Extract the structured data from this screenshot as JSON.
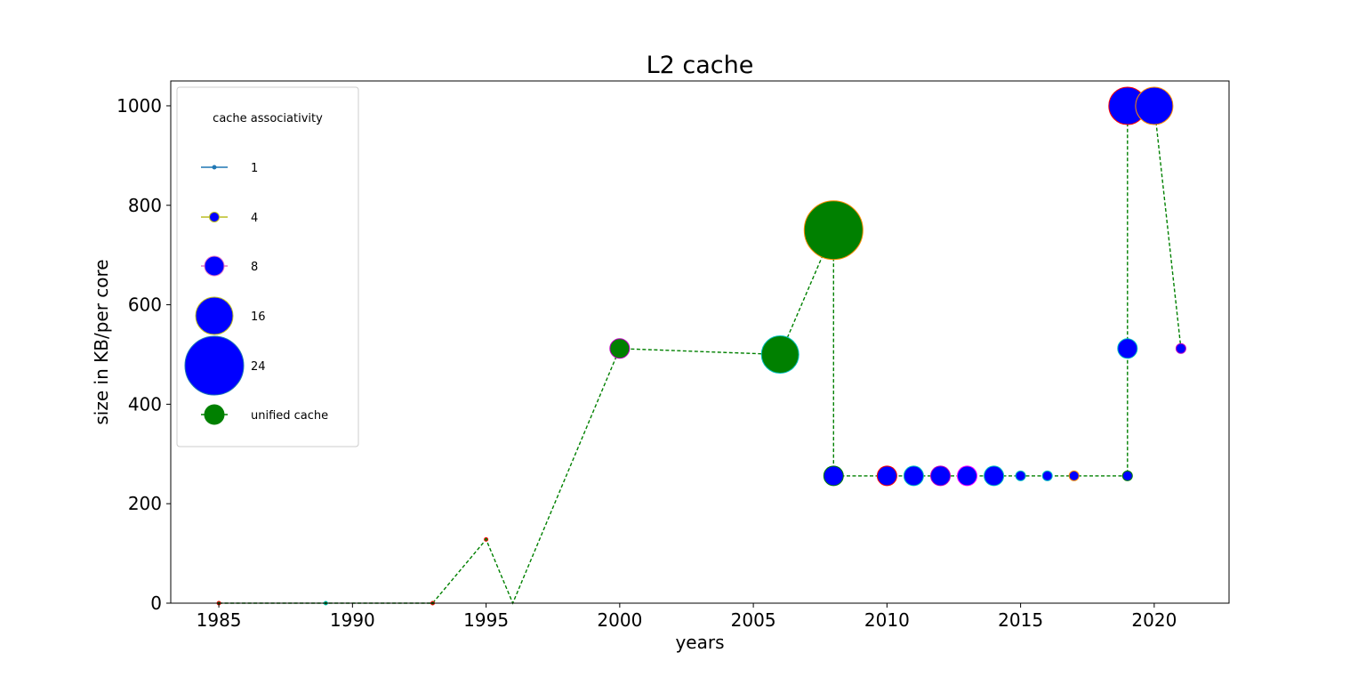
{
  "chart_data": {
    "type": "scatter",
    "title": "L2 cache",
    "xlabel": "years",
    "ylabel": "size in KB/per core",
    "xlim": [
      1983.2,
      2022.8
    ],
    "ylim": [
      0,
      1050
    ],
    "xticks": [
      "1985",
      "1990",
      "1995",
      "2000",
      "2005",
      "2010",
      "2015",
      "2020"
    ],
    "yticks": [
      "0",
      "200",
      "400",
      "600",
      "800",
      "1000"
    ],
    "line_color": "#008000",
    "line_style": "dashed",
    "line_path": [
      [
        1985,
        0
      ],
      [
        1989,
        0
      ],
      [
        1993,
        0
      ],
      [
        1995,
        128
      ],
      [
        1996,
        0
      ],
      [
        2000,
        512
      ],
      [
        2006,
        500
      ],
      [
        2008,
        750
      ],
      [
        2008,
        256
      ],
      [
        2019,
        256
      ],
      [
        2019,
        512
      ],
      [
        2019,
        1000
      ],
      [
        2020,
        1000
      ],
      [
        2021,
        512
      ]
    ],
    "points": [
      {
        "x": 1985,
        "y": 0,
        "assoc": 1,
        "fill": "#008000",
        "edge": "#ff0000"
      },
      {
        "x": 1989,
        "y": 0,
        "assoc": 1,
        "fill": "#008000",
        "edge": "#00bfbf"
      },
      {
        "x": 1993,
        "y": 0,
        "assoc": 1,
        "fill": "#008000",
        "edge": "#ff0000"
      },
      {
        "x": 1995,
        "y": 128,
        "assoc": 1,
        "fill": "#008000",
        "edge": "#ff0000"
      },
      {
        "x": 2000,
        "y": 512,
        "assoc": 8,
        "fill": "#008000",
        "edge": "#bf00bf"
      },
      {
        "x": 2006,
        "y": 500,
        "assoc": 16,
        "fill": "#008000",
        "edge": "#00bfbf"
      },
      {
        "x": 2008,
        "y": 750,
        "assoc": 24,
        "fill": "#008000",
        "edge": "#ff8c00"
      },
      {
        "x": 2008,
        "y": 256,
        "assoc": 8,
        "fill": "#0000ff",
        "edge": "#008000"
      },
      {
        "x": 2010,
        "y": 256,
        "assoc": 8,
        "fill": "#0000ff",
        "edge": "#ff0000"
      },
      {
        "x": 2011,
        "y": 256,
        "assoc": 8,
        "fill": "#0000ff",
        "edge": "#00bfbf"
      },
      {
        "x": 2012,
        "y": 256,
        "assoc": 8,
        "fill": "#0000ff",
        "edge": "#bf00bf"
      },
      {
        "x": 2013,
        "y": 256,
        "assoc": 8,
        "fill": "#0000ff",
        "edge": "#ff00ff"
      },
      {
        "x": 2014,
        "y": 256,
        "assoc": 8,
        "fill": "#0000ff",
        "edge": "#00bfbf"
      },
      {
        "x": 2015,
        "y": 256,
        "assoc": 4,
        "fill": "#0000ff",
        "edge": "#00bfbf"
      },
      {
        "x": 2016,
        "y": 256,
        "assoc": 4,
        "fill": "#0000ff",
        "edge": "#00bfbf"
      },
      {
        "x": 2017,
        "y": 256,
        "assoc": 4,
        "fill": "#0000ff",
        "edge": "#ff8c00"
      },
      {
        "x": 2019,
        "y": 256,
        "assoc": 4,
        "fill": "#0000ff",
        "edge": "#008000"
      },
      {
        "x": 2019,
        "y": 512,
        "assoc": 8,
        "fill": "#0000ff",
        "edge": "#00bfbf"
      },
      {
        "x": 2019,
        "y": 1000,
        "assoc": 16,
        "fill": "#0000ff",
        "edge": "#ff0000"
      },
      {
        "x": 2020,
        "y": 1000,
        "assoc": 16,
        "fill": "#0000ff",
        "edge": "#ff8c00"
      },
      {
        "x": 2021,
        "y": 512,
        "assoc": 4,
        "fill": "#0000ff",
        "edge": "#bf00bf"
      }
    ],
    "legend": {
      "title": "cache associativity",
      "placement": "upper-left",
      "entries": [
        {
          "label": "1",
          "assoc": 1,
          "fill": "#1f77b4",
          "edge": "#1f77b4",
          "line": "#1f77b4"
        },
        {
          "label": "4",
          "assoc": 4,
          "fill": "#0000ff",
          "edge": "#bcbd22",
          "line": "#bcbd22"
        },
        {
          "label": "8",
          "assoc": 8,
          "fill": "#0000ff",
          "edge": "#e377c2",
          "line": "#e377c2"
        },
        {
          "label": "16",
          "assoc": 16,
          "fill": "#0000ff",
          "edge": "#bcbd22",
          "line": ""
        },
        {
          "label": "24",
          "assoc": 24,
          "fill": "#0000ff",
          "edge": "#1f77b4",
          "line": ""
        },
        {
          "label": "unified cache",
          "assoc": 8,
          "fill": "#008000",
          "edge": "#008000",
          "line": "#008000"
        }
      ]
    },
    "marker_radius_by_assoc": {
      "1": 2,
      "4": 5.5,
      "8": 11,
      "16": 21,
      "24": 33
    }
  }
}
